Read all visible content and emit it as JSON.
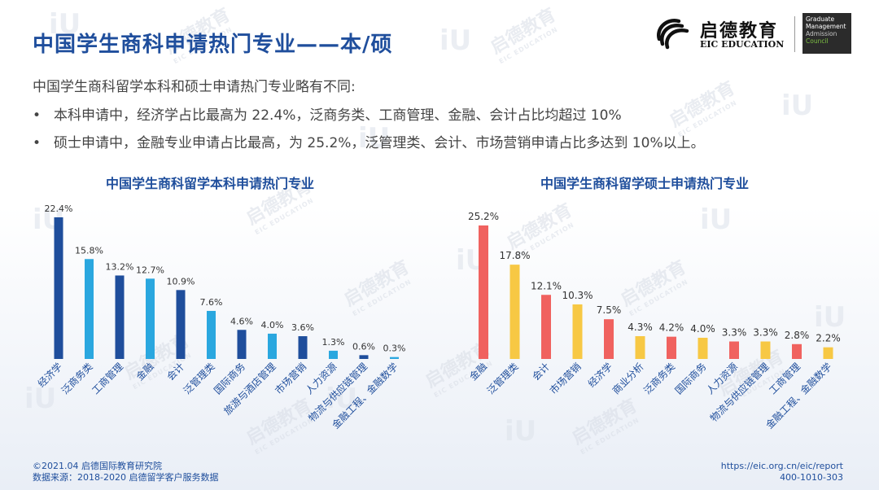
{
  "header": {
    "title": "中国学生商科申请热门专业——本/硕",
    "logo_cn": "启德教育",
    "logo_en": "EIC EDUCATION",
    "gmac_line1": "Graduate",
    "gmac_line2": "Management",
    "gmac_line3": "Admission",
    "gmac_line4": "Council"
  },
  "body": {
    "intro": "中国学生商科留学本科和硕士申请热门专业略有不同:",
    "bullet_symbol": "•",
    "bullets": [
      "本科申请中，经济学占比最高为 22.4%，泛商务类、工商管理、金融、会计占比均超过 10%",
      "硕士申请中，金融专业申请占比最高，为 25.2%，泛管理类、会计、市场营销申请占比多达到 10%以上。"
    ]
  },
  "chart_data": [
    {
      "type": "bar",
      "title": "中国学生商科留学本科申请热门专业",
      "categories": [
        "经济学",
        "泛商务类",
        "工商管理",
        "金融",
        "会计",
        "泛管理类",
        "国际商务",
        "旅游与酒店管理",
        "市场营销",
        "人力资源",
        "物流与供应链管理",
        "金融工程、金融数学"
      ],
      "values": [
        22.4,
        15.8,
        13.2,
        12.7,
        10.9,
        7.6,
        4.6,
        4.0,
        3.6,
        1.3,
        0.6,
        0.3
      ],
      "value_labels": [
        "22.4%",
        "15.8%",
        "13.2%",
        "12.7%",
        "10.9%",
        "7.6%",
        "4.6%",
        "4.0%",
        "3.6%",
        "1.3%",
        "0.6%",
        "0.3%"
      ],
      "colors": [
        "#1f4e9c",
        "#2aa7df"
      ],
      "ylim": [
        0,
        22.4
      ]
    },
    {
      "type": "bar",
      "title": "中国学生商科留学硕士申请热门专业",
      "categories": [
        "金融",
        "泛管理类",
        "会计",
        "市场营销",
        "经济学",
        "商业分析",
        "泛商务类",
        "国际商务",
        "人力资源",
        "物流与供应链管理",
        "工商管理",
        "金融工程、金融数学"
      ],
      "values": [
        25.2,
        17.8,
        12.1,
        10.3,
        7.5,
        4.3,
        4.2,
        4.0,
        3.3,
        3.3,
        2.8,
        2.2
      ],
      "value_labels": [
        "25.2%",
        "17.8%",
        "12.1%",
        "10.3%",
        "7.5%",
        "4.3%",
        "4.2%",
        "4.0%",
        "3.3%",
        "3.3%",
        "2.8%",
        "2.2%"
      ],
      "colors": [
        "#f0625f",
        "#f7c844"
      ],
      "ylim": [
        0,
        25.2
      ]
    }
  ],
  "footer": {
    "copyright": "©2021.04 启德国际教育研究院",
    "source": "数据来源：2018-2020 启德留学客户服务数据",
    "url": "https://eic.org.cn/eic/report",
    "phone": "400-1010-303"
  },
  "watermark": {
    "text": "启德教育",
    "sub": "EIC EDUCATION",
    "mark": "iU"
  }
}
